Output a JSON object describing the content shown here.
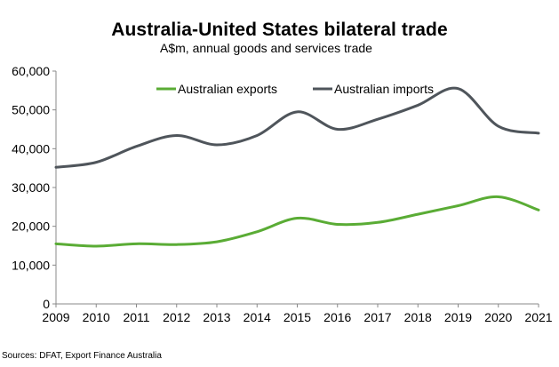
{
  "chart_data": {
    "type": "line",
    "title": "Australia-United States bilateral trade",
    "subtitle": "A$m, annual goods and services trade",
    "xlabel": "",
    "ylabel": "",
    "x": [
      2009,
      2010,
      2011,
      2012,
      2013,
      2014,
      2015,
      2016,
      2017,
      2018,
      2019,
      2020,
      2021
    ],
    "x_tick_labels": [
      "2009",
      "2010",
      "2011",
      "2012",
      "2013",
      "2014",
      "2015",
      "2016",
      "2017",
      "2018",
      "2019",
      "2020",
      "2021"
    ],
    "xlim": [
      2009,
      2021
    ],
    "ylim": [
      0,
      60000
    ],
    "y_ticks": [
      0,
      10000,
      20000,
      30000,
      40000,
      50000,
      60000
    ],
    "y_tick_labels": [
      "0",
      "10,000",
      "20,000",
      "30,000",
      "40,000",
      "50,000",
      "60,000"
    ],
    "grid": false,
    "legend_position": "top",
    "series": [
      {
        "name": "Australian exports",
        "color": "#5aac35",
        "values": [
          15500,
          14900,
          15500,
          15300,
          16000,
          18600,
          22100,
          20500,
          21000,
          23100,
          25300,
          27600,
          24200
        ]
      },
      {
        "name": "Australian imports",
        "color": "#4f555b",
        "values": [
          35200,
          36500,
          40600,
          43400,
          41000,
          43400,
          49500,
          45000,
          47600,
          51200,
          55500,
          45800,
          44000
        ]
      }
    ],
    "source": "Sources: DFAT, Export Finance Australia"
  }
}
